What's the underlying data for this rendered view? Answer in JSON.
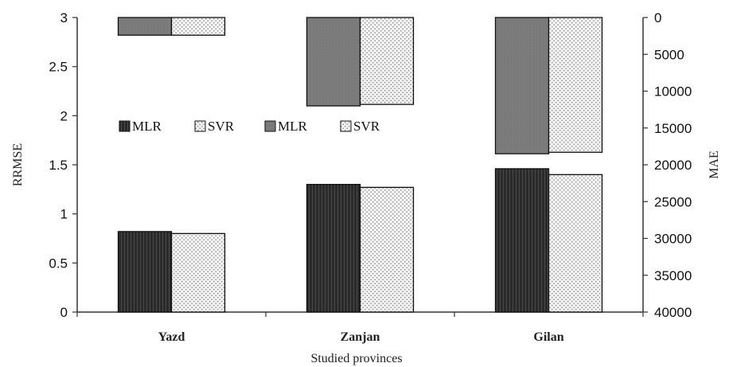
{
  "chart_data": {
    "type": "bar",
    "categories": [
      "Yazd",
      "Zanjan",
      "Gilan"
    ],
    "xlabel": "Studied provinces",
    "ylabel": "RRMSE",
    "y2label": "MAE",
    "ylim": [
      0,
      3
    ],
    "y2lim": [
      0,
      40000
    ],
    "y2_inverted": true,
    "left_ticks": [
      "0",
      "0.5",
      "1",
      "1.5",
      "2",
      "2.5",
      "3"
    ],
    "right_ticks": [
      "0",
      "5000",
      "10000",
      "15000",
      "20000",
      "25000",
      "30000",
      "35000",
      "40000"
    ],
    "series": [
      {
        "name": "MLR",
        "axis": "left",
        "values": [
          0.82,
          1.3,
          1.46
        ],
        "color": "#3a3a3a",
        "pattern": "hatch-dark"
      },
      {
        "name": "SVR",
        "axis": "left",
        "values": [
          0.8,
          1.27,
          1.4
        ],
        "color": "#e8e8e8",
        "pattern": "dots"
      },
      {
        "name": "MLR",
        "axis": "right",
        "values": [
          2400,
          12000,
          18500
        ],
        "color": "#7a7a7a",
        "pattern": "solid-grey"
      },
      {
        "name": "SVR",
        "axis": "right",
        "values": [
          2400,
          11800,
          18300
        ],
        "color": "#e8e8e8",
        "pattern": "dots"
      }
    ],
    "legend_position": "middle-left",
    "grid": false
  }
}
